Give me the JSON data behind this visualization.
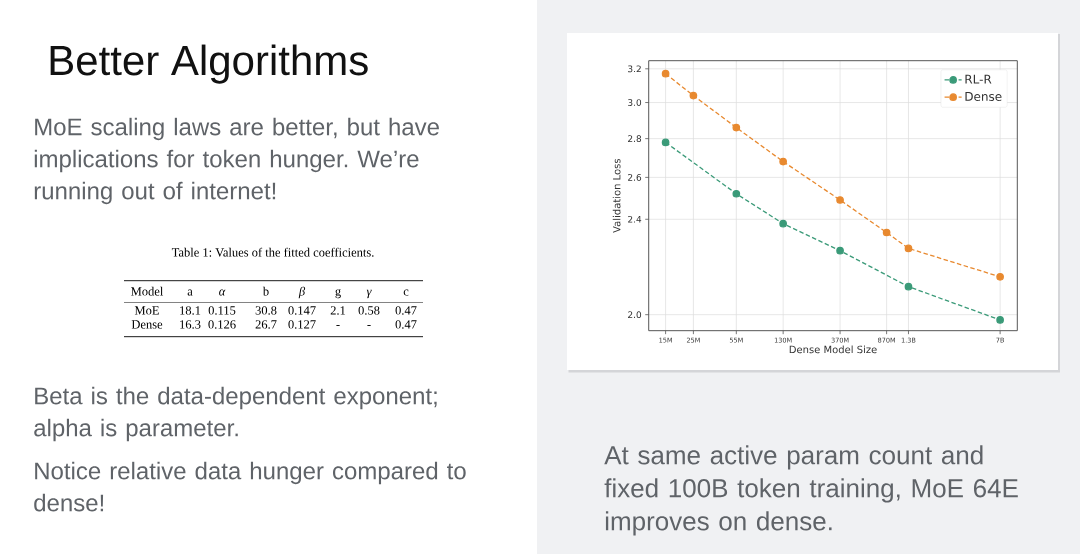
{
  "chart_data": {
    "type": "line",
    "title": "Better Algorithms",
    "xlabel": "Dense Model Size",
    "ylabel": "Validation Loss",
    "log": "xy",
    "xlim": [
      11000000,
      9600000000
    ],
    "ylim": [
      1.94,
      3.25
    ],
    "xticks": [
      {
        "value": 15000000,
        "label": "15M"
      },
      {
        "value": 25000000,
        "label": "25M"
      },
      {
        "value": 55000000,
        "label": "55M"
      },
      {
        "value": 130000000,
        "label": "130M"
      },
      {
        "value": 370000000,
        "label": "370M"
      },
      {
        "value": 870000000,
        "label": "870M"
      },
      {
        "value": 1300000000,
        "label": "1.3B"
      },
      {
        "value": 7000000000,
        "label": "7B"
      }
    ],
    "yticks": [
      {
        "value": 2,
        "label": "2.0"
      },
      2.4,
      2.6,
      2.8,
      {
        "value": 3,
        "label": "3.0"
      },
      3.2
    ],
    "grid": true,
    "legend": "top right",
    "marker": "circle",
    "line_style": "dashed",
    "series": [
      {
        "name": "RL-R",
        "color": "#3a9a78",
        "x": [
          15000000,
          55000000,
          130000000,
          370000000,
          1300000000,
          7000000000
        ],
        "values": [
          2.78,
          2.52,
          2.38,
          2.26,
          2.11,
          1.98
        ]
      },
      {
        "name": "Dense",
        "color": "#e8892f",
        "x": [
          15000000,
          25000000,
          55000000,
          130000000,
          370000000,
          870000000,
          1300000000,
          7000000000
        ],
        "values": [
          3.17,
          3.04,
          2.86,
          2.68,
          2.49,
          2.34,
          2.27,
          2.15
        ]
      }
    ],
    "annotations": [
      "MoE scaling laws are better, but have implications for token hunger. We’re running out of internet!",
      "Table 1: Values of the fitted coefficients.",
      "Model",
      "a",
      "α",
      "b",
      "β",
      "g",
      "γ",
      "c",
      "MoE",
      "18.1",
      "0.115",
      "30.8",
      "0.147",
      "2.1",
      "0.58",
      "0.47",
      "Dense",
      "16.3",
      "0.126",
      "26.7",
      "0.127",
      "-",
      "-",
      "0.47",
      "Beta is the data-dependent exponent; alpha is parameter.",
      "Notice relative data hunger compared to dense!",
      "At same active param count and fixed 100B token training, MoE 64E improves on dense."
    ]
  }
}
